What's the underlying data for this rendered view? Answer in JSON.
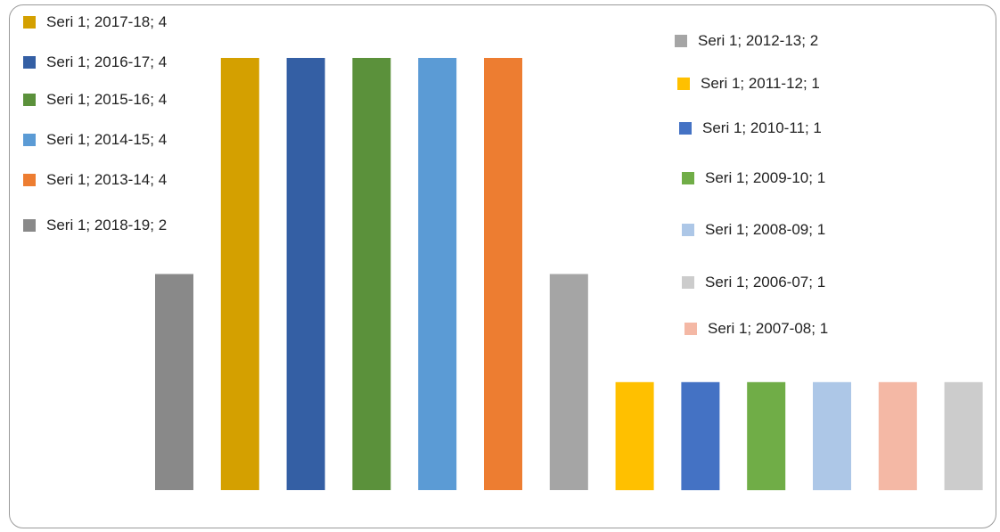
{
  "chart_data": {
    "type": "bar",
    "categories": [
      "2018-19",
      "2017-18",
      "2016-17",
      "2015-16",
      "2014-15",
      "2013-14",
      "2012-13",
      "2011-12",
      "2010-11",
      "2009-10",
      "2008-09",
      "2007-08",
      "2006-07"
    ],
    "values": [
      2,
      4,
      4,
      4,
      4,
      4,
      2,
      1,
      1,
      1,
      1,
      1,
      1
    ],
    "colors": [
      "#898989",
      "#D4A000",
      "#345FA4",
      "#5B913B",
      "#5B9BD5",
      "#ED7D31",
      "#A5A5A5",
      "#FFC000",
      "#4472C4",
      "#70AD47",
      "#ADC7E7",
      "#F4B8A5",
      "#CCCCCC"
    ],
    "ylim": [
      0,
      4
    ],
    "grid": false,
    "legend": {
      "placement": "top-left and right",
      "entries": [
        {
          "label": "Seri 1; 2017-18; 4",
          "color": "#D4A000"
        },
        {
          "label": "Seri 1; 2016-17; 4",
          "color": "#345FA4"
        },
        {
          "label": "Seri 1; 2015-16; 4",
          "color": "#5B913B"
        },
        {
          "label": "Seri 1; 2014-15; 4",
          "color": "#5B9BD5"
        },
        {
          "label": "Seri 1; 2013-14; 4",
          "color": "#ED7D31"
        },
        {
          "label": "Seri 1; 2018-19; 2",
          "color": "#898989"
        },
        {
          "label": "Seri 1; 2012-13; 2",
          "color": "#A5A5A5"
        },
        {
          "label": "Seri 1; 2011-12; 1",
          "color": "#FFC000"
        },
        {
          "label": "Seri 1; 2010-11; 1",
          "color": "#4472C4"
        },
        {
          "label": "Seri 1; 2009-10; 1",
          "color": "#70AD47"
        },
        {
          "label": "Seri 1; 2008-09; 1",
          "color": "#ADC7E7"
        },
        {
          "label": "Seri 1; 2006-07; 1",
          "color": "#CCCCCC"
        },
        {
          "label": "Seri 1; 2007-08; 1",
          "color": "#F4B8A5"
        }
      ]
    }
  }
}
